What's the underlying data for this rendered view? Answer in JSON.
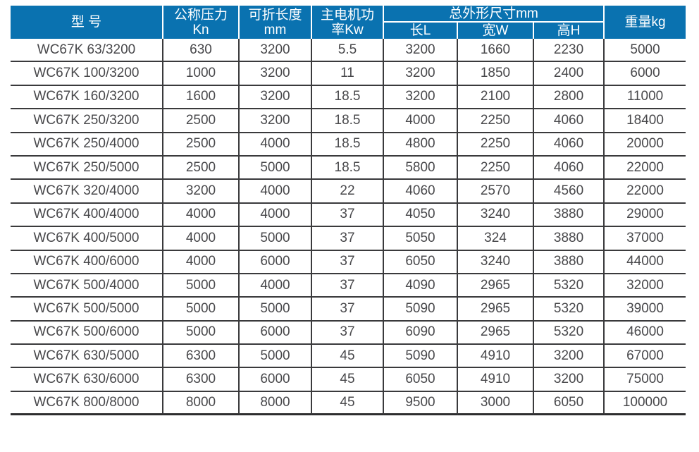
{
  "table": {
    "title_semantic": "WC67K press brake specification table",
    "headers": {
      "model": "型 号",
      "nominal_pressure": "公称压力\nKn",
      "folding_length": "可折长度\nmm",
      "main_motor_power": "主电机功\n率Kw",
      "overall_dimensions_group": "总外形尺寸mm",
      "dim_length": "长L",
      "dim_width": "宽W",
      "dim_height": "高H",
      "weight": "重量kg"
    },
    "rows": [
      [
        "WC67K 63/3200",
        "630",
        "3200",
        "5.5",
        "3200",
        "1660",
        "2230",
        "5000"
      ],
      [
        "WC67K 100/3200",
        "1000",
        "3200",
        "11",
        "3200",
        "1850",
        "2400",
        "6000"
      ],
      [
        "WC67K 160/3200",
        "1600",
        "3200",
        "18.5",
        "3200",
        "2100",
        "2800",
        "11000"
      ],
      [
        "WC67K 250/3200",
        "2500",
        "3200",
        "18.5",
        "4000",
        "2250",
        "4060",
        "18400"
      ],
      [
        "WC67K 250/4000",
        "2500",
        "4000",
        "18.5",
        "4800",
        "2250",
        "4060",
        "20000"
      ],
      [
        "WC67K 250/5000",
        "2500",
        "5000",
        "18.5",
        "5800",
        "2250",
        "4060",
        "22000"
      ],
      [
        "WC67K 320/4000",
        "3200",
        "4000",
        "22",
        "4060",
        "2570",
        "4560",
        "22000"
      ],
      [
        "WC67K 400/4000",
        "4000",
        "4000",
        "37",
        "4050",
        "3240",
        "3880",
        "29000"
      ],
      [
        "WC67K 400/5000",
        "4000",
        "5000",
        "37",
        "5050",
        "324",
        "3880",
        "37000"
      ],
      [
        "WC67K 400/6000",
        "4000",
        "6000",
        "37",
        "6050",
        "3240",
        "3880",
        "44000"
      ],
      [
        "WC67K 500/4000",
        "5000",
        "4000",
        "37",
        "4090",
        "2965",
        "5320",
        "32000"
      ],
      [
        "WC67K 500/5000",
        "5000",
        "5000",
        "37",
        "5090",
        "2965",
        "5320",
        "39000"
      ],
      [
        "WC67K 500/6000",
        "5000",
        "6000",
        "37",
        "6090",
        "2965",
        "5320",
        "46000"
      ],
      [
        "WC67K 630/5000",
        "6300",
        "5000",
        "45",
        "5090",
        "4910",
        "3200",
        "67000"
      ],
      [
        "WC67K 630/6000",
        "6300",
        "6000",
        "45",
        "6050",
        "4910",
        "3200",
        "75000"
      ],
      [
        "WC67K 800/8000",
        "8000",
        "8000",
        "45",
        "9500",
        "3000",
        "6050",
        "100000"
      ]
    ],
    "colors": {
      "header_bg": "#0a72b0",
      "header_text": "#ffffff",
      "grid_line": "#3a3a3c",
      "cell_text": "#48484b"
    }
  }
}
